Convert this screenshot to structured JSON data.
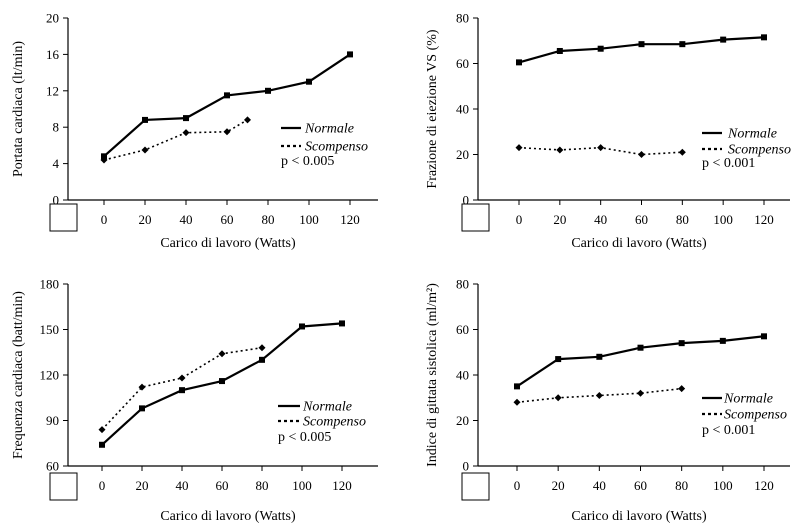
{
  "chart_data": [
    {
      "type": "line",
      "xlabel": "Carico di lavoro  (Watts)",
      "ylabel": "Portata cardiaca (lt/min)",
      "x_ticks": [
        0,
        20,
        40,
        60,
        80,
        100,
        120
      ],
      "y_ticks": [
        0,
        4,
        8,
        12,
        16,
        20
      ],
      "xlim": [
        0,
        120
      ],
      "ylim": [
        0,
        20
      ],
      "legend_position": "right",
      "annotation": "p < 0.005",
      "series": [
        {
          "name": "Normale",
          "style": "solid",
          "marker": "square",
          "x": [
            0,
            20,
            40,
            60,
            80,
            100,
            120
          ],
          "y": [
            4.8,
            8.8,
            9.0,
            11.5,
            12.0,
            13.0,
            16.0
          ]
        },
        {
          "name": "Scompenso",
          "style": "dotted",
          "marker": "diamond",
          "x": [
            0,
            20,
            40,
            60,
            70
          ],
          "y": [
            4.4,
            5.5,
            7.4,
            7.5,
            8.8
          ]
        }
      ]
    },
    {
      "type": "line",
      "xlabel": "Carico di lavoro  (Watts)",
      "ylabel": "Frazione di eiezione VS  (%)",
      "x_ticks": [
        0,
        20,
        40,
        60,
        80,
        100,
        120
      ],
      "y_ticks": [
        0,
        20,
        40,
        60,
        80
      ],
      "xlim": [
        0,
        120
      ],
      "ylim": [
        0,
        80
      ],
      "legend_position": "right",
      "annotation": "p < 0.001",
      "series": [
        {
          "name": "Normale",
          "style": "solid",
          "marker": "square",
          "x": [
            0,
            20,
            40,
            60,
            80,
            100,
            120
          ],
          "y": [
            60.5,
            65.5,
            66.5,
            68.5,
            68.5,
            70.5,
            71.5
          ]
        },
        {
          "name": "Scompenso",
          "style": "dotted",
          "marker": "diamond",
          "x": [
            0,
            20,
            40,
            60,
            80
          ],
          "y": [
            23,
            22,
            23,
            20,
            21
          ]
        }
      ]
    },
    {
      "type": "line",
      "xlabel": "Carico di lavoro  (Watts)",
      "ylabel": "Frequenza cardiaca (batt/min)",
      "x_ticks": [
        0,
        20,
        40,
        60,
        80,
        100,
        120
      ],
      "y_ticks": [
        60,
        90,
        120,
        150,
        180
      ],
      "xlim": [
        0,
        120
      ],
      "ylim": [
        60,
        180
      ],
      "legend_position": "right",
      "annotation": "p < 0.005",
      "series": [
        {
          "name": "Normale",
          "style": "solid",
          "marker": "square",
          "x": [
            0,
            20,
            40,
            60,
            80,
            100,
            120
          ],
          "y": [
            74,
            98,
            110,
            116,
            130,
            152,
            154
          ]
        },
        {
          "name": "Scompenso",
          "style": "dotted",
          "marker": "diamond",
          "x": [
            0,
            20,
            40,
            60,
            80
          ],
          "y": [
            84,
            112,
            118,
            134,
            138
          ]
        }
      ]
    },
    {
      "type": "line",
      "xlabel": "Carico di lavoro  (Watts)",
      "ylabel": "Indice di gittata sistolica  (ml/m²)",
      "x_ticks": [
        0,
        20,
        40,
        60,
        80,
        100,
        120
      ],
      "y_ticks": [
        0,
        20,
        40,
        60,
        80
      ],
      "xlim": [
        0,
        120
      ],
      "ylim": [
        0,
        80
      ],
      "legend_position": "right",
      "annotation": "p < 0.001",
      "series": [
        {
          "name": "Normale",
          "style": "solid",
          "marker": "square",
          "x": [
            0,
            20,
            40,
            60,
            80,
            100,
            120
          ],
          "y": [
            35,
            47,
            48,
            52,
            54,
            55,
            57
          ]
        },
        {
          "name": "Scompenso",
          "style": "dotted",
          "marker": "diamond",
          "x": [
            0,
            20,
            40,
            60,
            80
          ],
          "y": [
            28,
            30,
            31,
            32,
            34
          ]
        }
      ]
    }
  ]
}
